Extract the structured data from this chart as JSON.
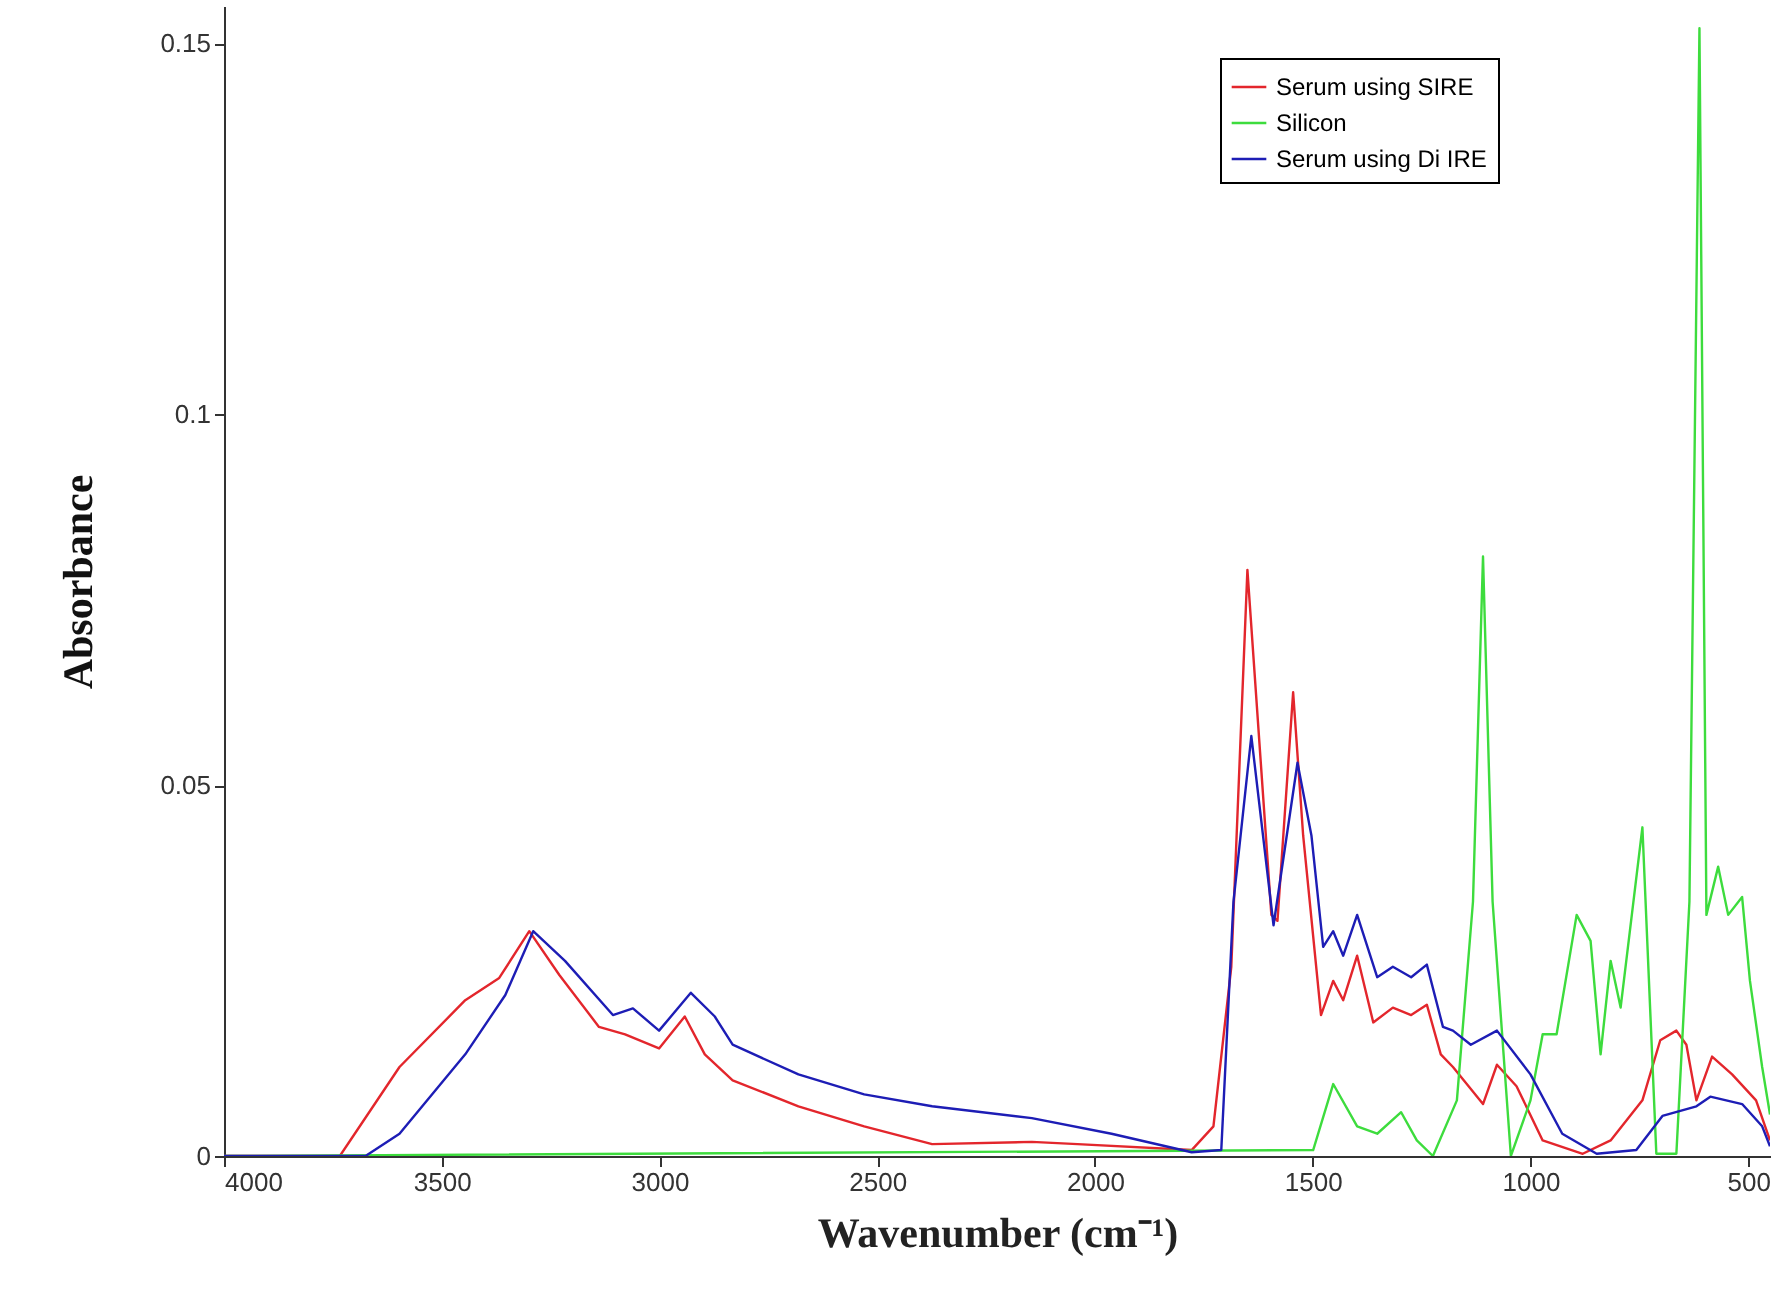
{
  "chart_data": {
    "type": "line",
    "xlabel": "Wavenumber (cm⁻¹)",
    "ylabel": "Absorbance",
    "xlim": [
      4000,
      450
    ],
    "ylim": [
      0,
      0.155
    ],
    "xticks": [
      4000,
      3500,
      3000,
      2500,
      2000,
      1500,
      1000,
      500
    ],
    "yticks": [
      0,
      0.05,
      0.1,
      0.15
    ],
    "grid": false,
    "legend": "top right",
    "line_style": "solid",
    "marker": "none",
    "series": [
      {
        "name": "Serum using SIRE",
        "color": "#e3262c",
        "x": [
          4000,
          3734,
          3597,
          3446,
          3368,
          3299,
          3230,
          3139,
          3079,
          3001,
          2942,
          2896,
          2832,
          2681,
          2530,
          2374,
          2145,
          2040,
          1778,
          1728,
          1687,
          1650,
          1595,
          1581,
          1545,
          1522,
          1481,
          1453,
          1430,
          1398,
          1361,
          1316,
          1274,
          1238,
          1206,
          1178,
          1109,
          1077,
          1032,
          972,
          880,
          816,
          743,
          702,
          665,
          642,
          619,
          583,
          537,
          482,
          450
        ],
        "values": [
          0,
          0,
          0.012,
          0.021,
          0.024,
          0.0303,
          0.0244,
          0.0174,
          0.0164,
          0.0145,
          0.0188,
          0.0137,
          0.0102,
          0.0067,
          0.004,
          0.0016,
          0.0019,
          0.0016,
          0.0008,
          0.004,
          0.0255,
          0.079,
          0.0325,
          0.0317,
          0.0625,
          0.0432,
          0.019,
          0.0236,
          0.021,
          0.027,
          0.018,
          0.02,
          0.019,
          0.0204,
          0.0137,
          0.012,
          0.007,
          0.0123,
          0.0094,
          0.0021,
          0.0003,
          0.0021,
          0.0075,
          0.0156,
          0.0169,
          0.015,
          0.0075,
          0.0134,
          0.011,
          0.0075,
          0.0021
        ]
      },
      {
        "name": "Silicon",
        "color": "#3ddc3d",
        "x": [
          4000,
          1499,
          1453,
          1398,
          1352,
          1297,
          1261,
          1224,
          1169,
          1132,
          1109,
          1087,
          1045,
          1000,
          972,
          940,
          894,
          862,
          839,
          816,
          793,
          743,
          711,
          665,
          635,
          612,
          596,
          569,
          546,
          514,
          496,
          468,
          450
        ],
        "values": [
          0,
          0.0008,
          0.0097,
          0.004,
          0.003,
          0.0059,
          0.0021,
          0,
          0.0075,
          0.0343,
          0.0808,
          0.0343,
          0,
          0.0075,
          0.0164,
          0.0164,
          0.0325,
          0.029,
          0.0137,
          0.0263,
          0.02,
          0.0443,
          0.0003,
          0.0003,
          0.0343,
          0.152,
          0.0325,
          0.039,
          0.0325,
          0.0349,
          0.0236,
          0.012,
          0.0056
        ]
      },
      {
        "name": "Serum using Di IRE",
        "color": "#1d1db5",
        "x": [
          4000,
          3675,
          3597,
          3446,
          3354,
          3290,
          3217,
          3107,
          3061,
          3001,
          2928,
          2873,
          2832,
          2681,
          2530,
          2374,
          2145,
          1962,
          1778,
          1710,
          1682,
          1641,
          1590,
          1535,
          1503,
          1476,
          1453,
          1430,
          1398,
          1352,
          1316,
          1274,
          1238,
          1201,
          1178,
          1137,
          1077,
          1000,
          927,
          848,
          757,
          697,
          619,
          587,
          514,
          468,
          450
        ],
        "values": [
          0,
          0,
          0.003,
          0.0137,
          0.0217,
          0.0303,
          0.0263,
          0.019,
          0.0199,
          0.0169,
          0.022,
          0.0188,
          0.015,
          0.011,
          0.0083,
          0.0067,
          0.0051,
          0.003,
          0.0005,
          0.0008,
          0.0343,
          0.0566,
          0.0311,
          0.053,
          0.0432,
          0.0282,
          0.0303,
          0.027,
          0.0325,
          0.0241,
          0.0255,
          0.0241,
          0.0258,
          0.0174,
          0.0169,
          0.015,
          0.0169,
          0.011,
          0.003,
          0.0003,
          0.0008,
          0.0054,
          0.0067,
          0.008,
          0.007,
          0.004,
          0.0013
        ]
      }
    ]
  }
}
